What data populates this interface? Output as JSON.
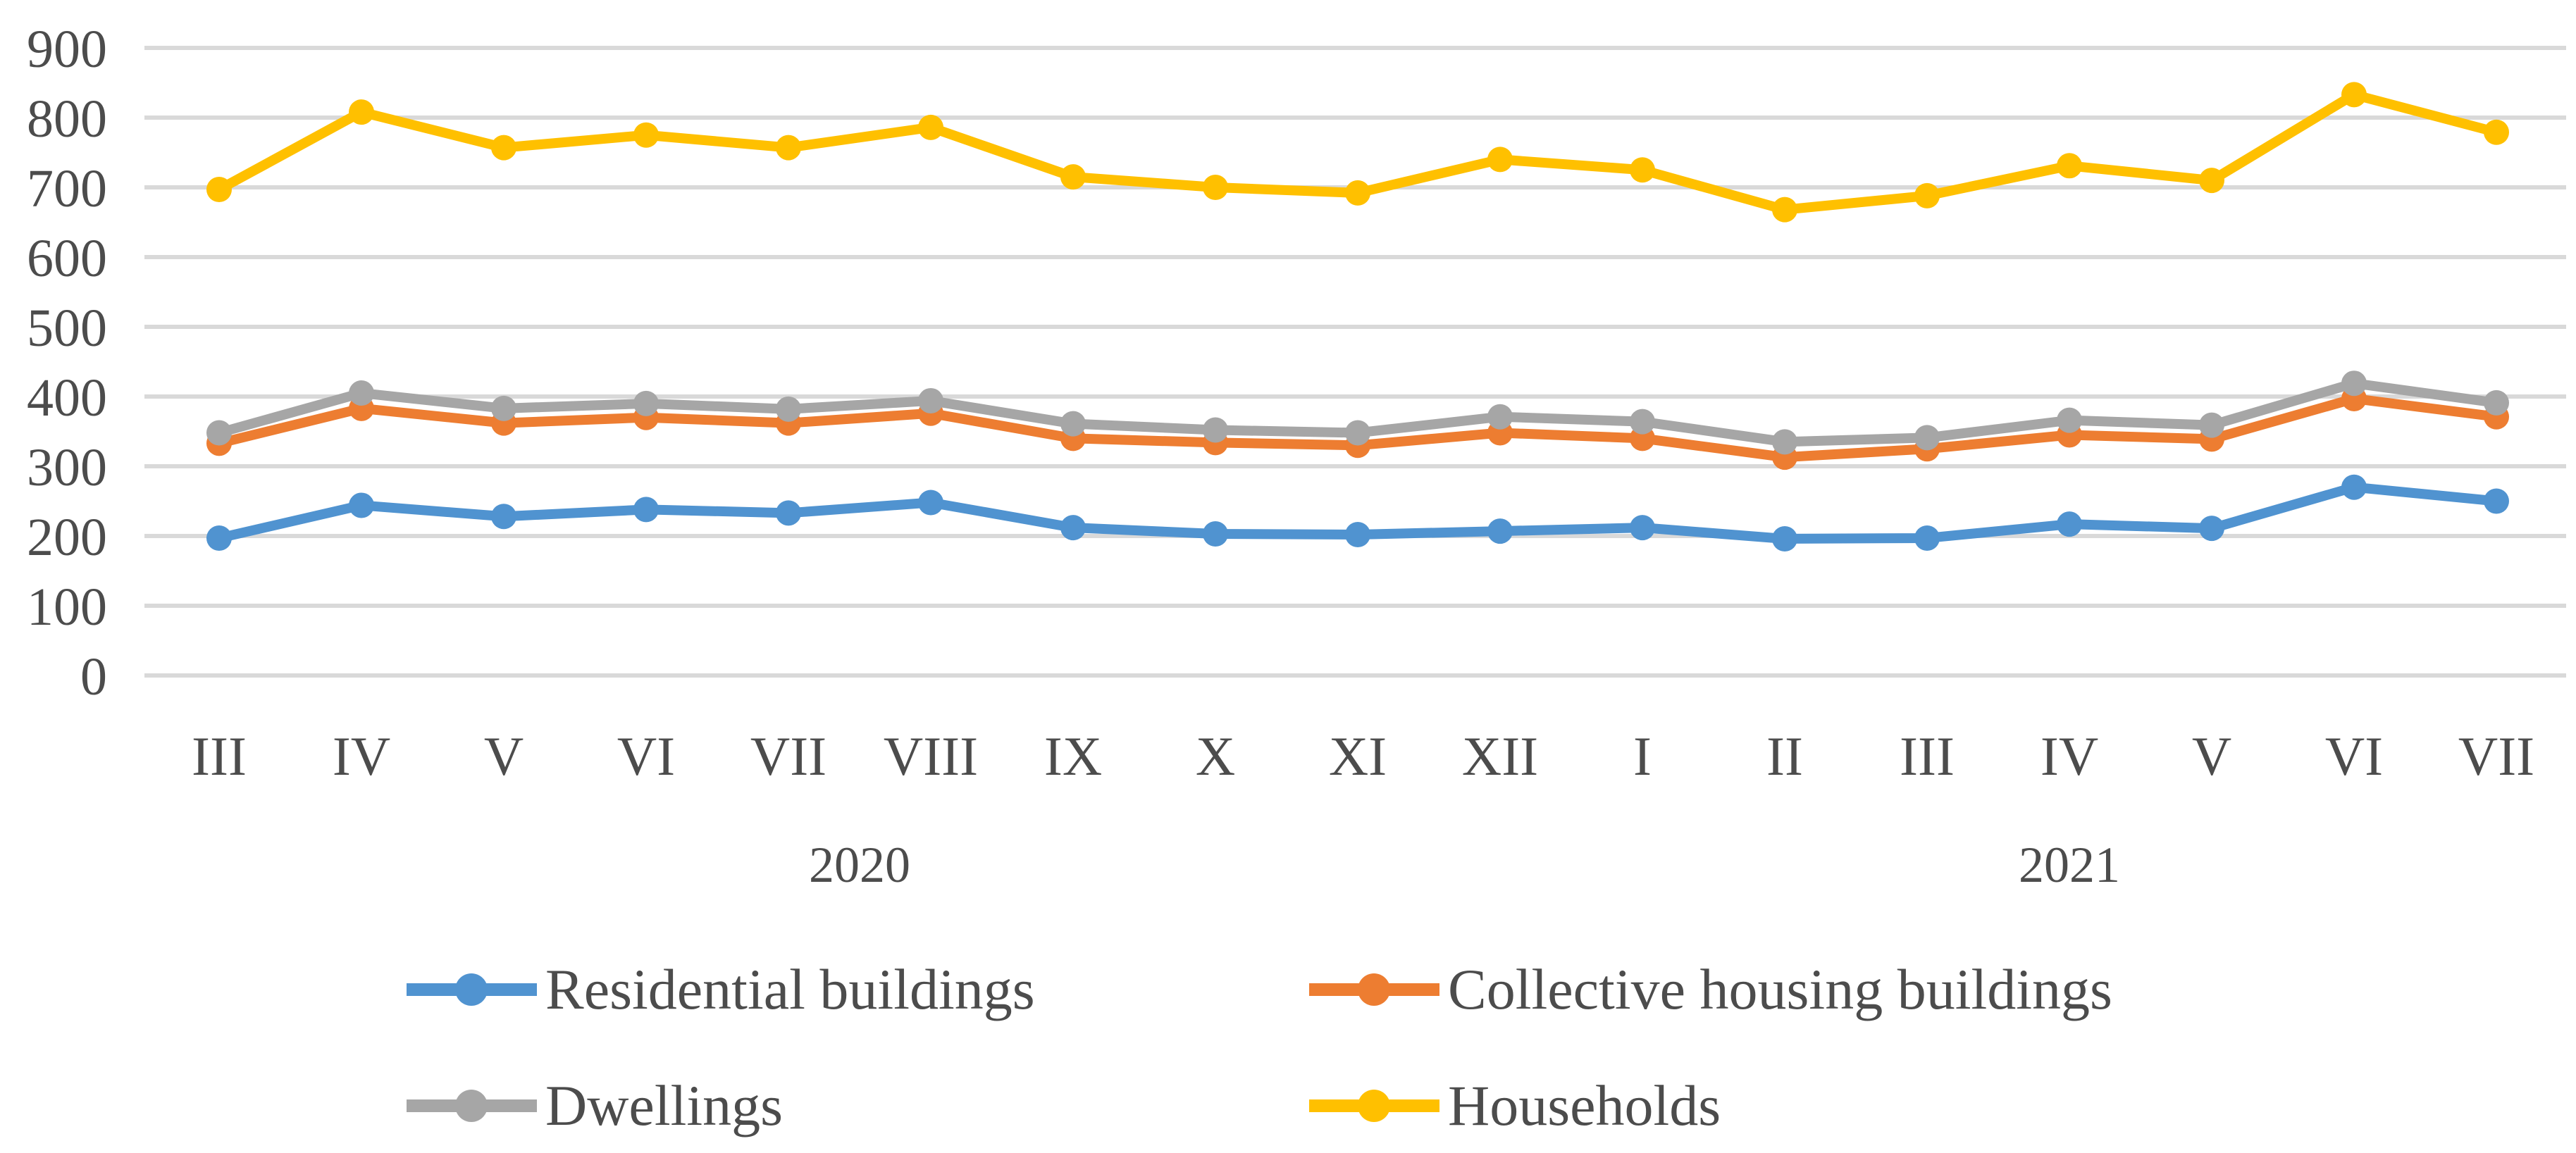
{
  "chart_data": {
    "type": "line",
    "title": "",
    "x_axis": {
      "months": [
        "III",
        "IV",
        "V",
        "VI",
        "VII",
        "VIII",
        "IX",
        "X",
        "XI",
        "XII",
        "I",
        "II",
        "III",
        "IV",
        "V",
        "VI",
        "VII"
      ],
      "year_groups": [
        {
          "label": "2020",
          "from_index": 0,
          "to_index": 9
        },
        {
          "label": "2021",
          "from_index": 10,
          "to_index": 16
        }
      ]
    },
    "y_axis": {
      "min": 0,
      "max": 900,
      "step": 100,
      "ticks": [
        900,
        800,
        700,
        600,
        500,
        400,
        300,
        200,
        100,
        0
      ]
    },
    "grid": true,
    "legend_position": "bottom",
    "series": [
      {
        "name": "Residential buildings",
        "color": "#5093D0",
        "values": [
          197,
          244,
          228,
          238,
          233,
          248,
          212,
          203,
          202,
          207,
          212,
          196,
          197,
          217,
          211,
          270,
          250
        ]
      },
      {
        "name": "Collective housing buildings",
        "color": "#ED7D31",
        "values": [
          333,
          383,
          362,
          370,
          362,
          376,
          340,
          334,
          330,
          348,
          340,
          313,
          325,
          345,
          339,
          397,
          371
        ]
      },
      {
        "name": "Dwellings",
        "color": "#A6A6A6",
        "values": [
          348,
          405,
          383,
          390,
          382,
          394,
          361,
          352,
          348,
          371,
          364,
          335,
          341,
          366,
          359,
          419,
          391
        ]
      },
      {
        "name": "Households",
        "color": "#FFC000",
        "values": [
          697,
          808,
          757,
          775,
          757,
          786,
          715,
          700,
          692,
          740,
          725,
          668,
          688,
          731,
          710,
          833,
          779
        ]
      }
    ]
  },
  "colors": {
    "gridline": "#D9D9D9",
    "axis_text": "#4C4C4C",
    "background": "#FFFFFF"
  }
}
